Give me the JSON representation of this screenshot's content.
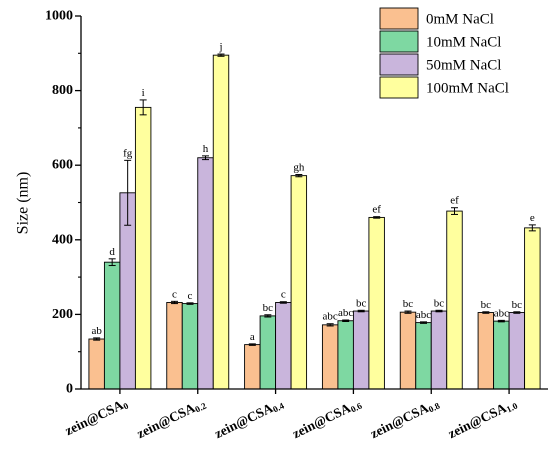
{
  "chart_data": {
    "type": "bar",
    "ylabel": "Size (nm)",
    "xlabel": "",
    "ylim": [
      0,
      1000
    ],
    "yticks": [
      0,
      200,
      400,
      600,
      800,
      1000
    ],
    "grid": false,
    "legend_position": "top-right",
    "categories": [
      {
        "base": "zein@CSA",
        "sub": "0"
      },
      {
        "base": "zein@CSA",
        "sub": "0.2"
      },
      {
        "base": "zein@CSA",
        "sub": "0.4"
      },
      {
        "base": "zein@CSA",
        "sub": "0.6"
      },
      {
        "base": "zein@CSA",
        "sub": "0.8"
      },
      {
        "base": "zein@CSA",
        "sub": "1.0"
      }
    ],
    "series": [
      {
        "name": "0mM NaCl",
        "color": "#FAC090",
        "values": [
          134,
          232,
          119,
          172,
          206,
          205
        ],
        "errors": [
          3,
          3,
          2,
          3,
          3,
          2
        ],
        "letters": [
          "ab",
          "c",
          "a",
          "abc",
          "bc",
          "bc"
        ]
      },
      {
        "name": "10mM NaCl",
        "color": "#7ED8A2",
        "values": [
          340,
          229,
          196,
          183,
          178,
          182
        ],
        "errors": [
          9,
          2,
          3,
          2,
          2,
          2
        ],
        "letters": [
          "d",
          "c",
          "bc",
          "abc",
          "abc",
          "abc"
        ]
      },
      {
        "name": "50mM NaCl",
        "color": "#C9B5DC",
        "values": [
          526,
          620,
          232,
          209,
          209,
          205
        ],
        "errors": [
          87,
          5,
          2,
          2,
          2,
          2
        ],
        "letters": [
          "fg",
          "h",
          "c",
          "bc",
          "bc",
          "bc"
        ]
      },
      {
        "name": "100mM NaCl",
        "color": "#FFFF9E",
        "values": [
          755,
          895,
          572,
          460,
          477,
          432
        ],
        "errors": [
          20,
          3,
          3,
          2,
          9,
          8
        ],
        "letters": [
          "i",
          "j",
          "gh",
          "ef",
          "ef",
          "e"
        ]
      }
    ]
  }
}
